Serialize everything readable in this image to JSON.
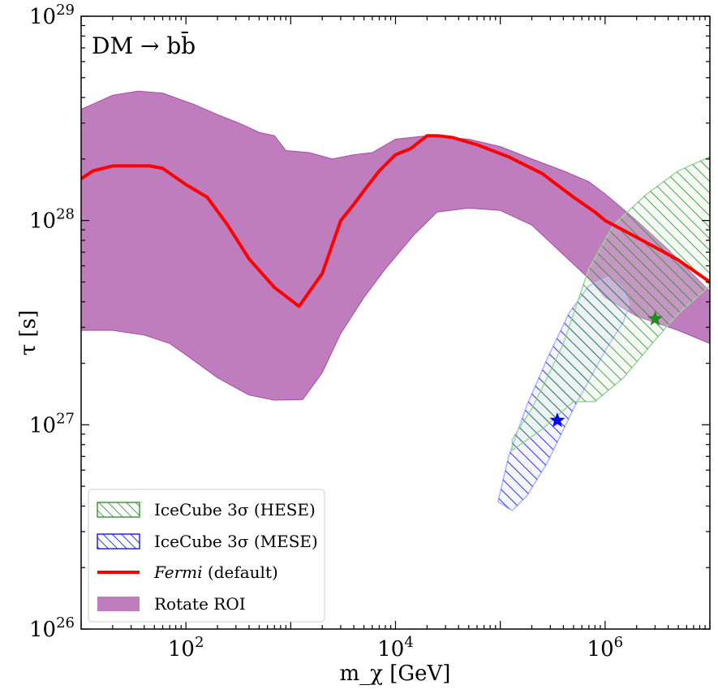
{
  "chart_data": {
    "type": "area",
    "title": "DM → bb̄",
    "xlabel": "m_χ [GeV]",
    "ylabel": "τ [s]",
    "x_scale": "log",
    "y_scale": "log",
    "xlim": [
      10,
      10000000
    ],
    "ylim": [
      1e+26,
      1e+29
    ],
    "x_ticks": [
      {
        "value": 100,
        "base": "10",
        "exp": "2"
      },
      {
        "value": 10000,
        "base": "10",
        "exp": "4"
      },
      {
        "value": 1000000,
        "base": "10",
        "exp": "6"
      }
    ],
    "y_ticks": [
      {
        "value": 1e+26,
        "base": "10",
        "exp": "26"
      },
      {
        "value": 1e+27,
        "base": "10",
        "exp": "27"
      },
      {
        "value": 1e+28,
        "base": "10",
        "exp": "28"
      },
      {
        "value": 1e+29,
        "base": "10",
        "exp": "29"
      }
    ],
    "legend_position": "bottom-left",
    "series": [
      {
        "name": "Rotate ROI",
        "kind": "band",
        "color": "#bf7dbe",
        "upper": [
          [
            10,
            3.5e+28
          ],
          [
            20,
            4.1e+28
          ],
          [
            35,
            4.3e+28
          ],
          [
            60,
            4.2e+28
          ],
          [
            120,
            3.7e+28
          ],
          [
            200,
            3.3e+28
          ],
          [
            320,
            3e+28
          ],
          [
            500,
            2.7e+28
          ],
          [
            700,
            2.6e+28
          ],
          [
            900,
            2.2e+28
          ],
          [
            1500,
            2.15e+28
          ],
          [
            2500,
            2e+28
          ],
          [
            4000,
            2.1e+28
          ],
          [
            6000,
            2.15e+28
          ],
          [
            10000,
            2.5e+28
          ],
          [
            20000,
            2.6e+28
          ],
          [
            50000,
            2.5e+28
          ],
          [
            100000,
            2.3e+28
          ],
          [
            200000,
            2e+28
          ],
          [
            400000,
            1.75e+28
          ],
          [
            700000,
            1.55e+28
          ],
          [
            1000000,
            1.35e+28
          ],
          [
            2000000,
            1e+28
          ],
          [
            4000000,
            7.2e+27
          ],
          [
            10000000,
            4.5e+27
          ]
        ],
        "lower": [
          [
            10,
            2.9e+27
          ],
          [
            20,
            2.9e+27
          ],
          [
            40,
            2.75e+27
          ],
          [
            70,
            2.5e+27
          ],
          [
            100,
            2.2e+27
          ],
          [
            200,
            1.7e+27
          ],
          [
            400,
            1.4e+27
          ],
          [
            700,
            1.32e+27
          ],
          [
            1300,
            1.33e+27
          ],
          [
            2000,
            1.8e+27
          ],
          [
            3000,
            2.8e+27
          ],
          [
            5000,
            4.2e+27
          ],
          [
            8000,
            5.8e+27
          ],
          [
            15000,
            8.5e+27
          ],
          [
            25000,
            1.1e+28
          ],
          [
            50000,
            1.15e+28
          ],
          [
            100000,
            1.12e+28
          ],
          [
            200000,
            9.5e+27
          ],
          [
            400000,
            6.8e+27
          ],
          [
            700000,
            5.2e+27
          ],
          [
            1000000,
            4.2e+27
          ],
          [
            2000000,
            3.4e+27
          ],
          [
            5000000,
            2.9e+27
          ],
          [
            10000000,
            2.5e+27
          ]
        ]
      },
      {
        "name": "Fermi (default)",
        "kind": "line",
        "color": "#ff0000",
        "x": [
          10,
          13,
          20,
          30,
          45,
          60,
          100,
          160,
          250,
          400,
          700,
          1200,
          2000,
          3000,
          4000,
          5000,
          7000,
          10000,
          14000,
          20000,
          25000,
          35000,
          60000,
          120000,
          250000,
          500000,
          800000,
          1000000,
          1600000,
          3000000,
          5000000,
          10000000
        ],
        "y": [
          1.6e+28,
          1.75e+28,
          1.85e+28,
          1.85e+28,
          1.85e+28,
          1.8e+28,
          1.5e+28,
          1.3e+28,
          9.5e+27,
          6.5e+27,
          4.7e+27,
          3.8e+27,
          5.5e+27,
          1e+28,
          1.2e+28,
          1.4e+28,
          1.75e+28,
          2.1e+28,
          2.25e+28,
          2.6e+28,
          2.6e+28,
          2.55e+28,
          2.35e+28,
          2.05e+28,
          1.7e+28,
          1.3e+28,
          1.1e+28,
          1e+28,
          8.8e+27,
          7.4e+27,
          6.4e+27,
          5e+27
        ]
      },
      {
        "name": "IceCube 3σ (HESE)",
        "kind": "hatched-region",
        "color": "#228b22",
        "boundary": [
          [
            500000,
            3.5e+27
          ],
          [
            700000,
            5.8e+27
          ],
          [
            1200000,
            9.5e+27
          ],
          [
            2500000,
            1.35e+28
          ],
          [
            5000000,
            1.75e+28
          ],
          [
            10000000,
            2.05e+28
          ],
          [
            10000000,
            4.8e+27
          ],
          [
            5000000,
            3.5e+27
          ],
          [
            3000000,
            2.6e+27
          ],
          [
            1500000,
            1.7e+27
          ],
          [
            800000,
            1.3e+27
          ],
          [
            500000,
            1.3e+27
          ],
          [
            250000,
            9.5e+26
          ],
          [
            130000,
            7.5e+26
          ],
          [
            130000,
            8.5e+26
          ],
          [
            200000,
            1.2e+27
          ],
          [
            280000,
            1.7e+27
          ],
          [
            400000,
            2.5e+27
          ]
        ],
        "best_fit": [
          3000000,
          3.3e+27
        ]
      },
      {
        "name": "IceCube 3σ (MESE)",
        "kind": "hatched-region",
        "color": "#0000ff",
        "boundary": [
          [
            95000,
            4.2e+26
          ],
          [
            120000,
            7e+26
          ],
          [
            180000,
            1.25e+27
          ],
          [
            280000,
            2.1e+27
          ],
          [
            450000,
            3.5e+27
          ],
          [
            700000,
            4.8e+27
          ],
          [
            1100000,
            5.3e+27
          ],
          [
            1450000,
            4.7e+27
          ],
          [
            1700000,
            3.9e+27
          ],
          [
            1500000,
            3.2e+27
          ],
          [
            1000000,
            2.3e+27
          ],
          [
            500000,
            1.2e+27
          ],
          [
            280000,
            6.5e+26
          ],
          [
            180000,
            4.5e+26
          ],
          [
            130000,
            3.8e+26
          ]
        ],
        "best_fit": [
          350000,
          1.05e+27
        ]
      }
    ],
    "legend": [
      {
        "label_main": "IceCube 3σ (HESE)",
        "style": "hatch",
        "color": "#228b22"
      },
      {
        "label_main": "IceCube 3σ (MESE)",
        "style": "hatch",
        "color": "#0000ff"
      },
      {
        "label_main": "Fermi (default)",
        "label_italic": "Fermi",
        "label_rest": " (default)",
        "style": "line",
        "color": "#ff0000"
      },
      {
        "label_main": "Rotate ROI",
        "style": "fill",
        "color": "#bf7dbe"
      }
    ]
  }
}
